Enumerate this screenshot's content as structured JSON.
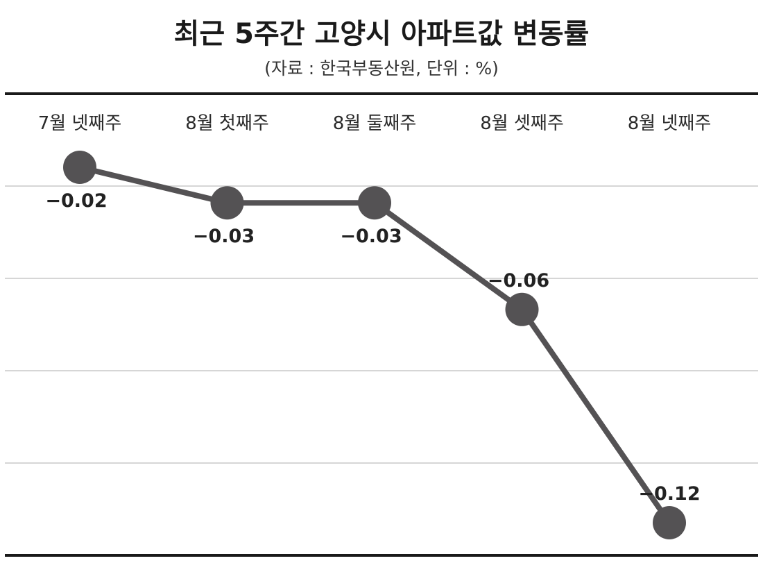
{
  "chart_data": {
    "type": "line",
    "title": "최근 5주간 고양시 아파트값 변동률",
    "subtitle": "(자료 : 한국부동산원, 단위 : %)",
    "xlabel": "",
    "ylabel": "",
    "categories": [
      "7월 넷째주",
      "8월 첫째주",
      "8월 둘째주",
      "8월 셋째주",
      "8월 넷째주"
    ],
    "series": [
      {
        "values": [
          -0.02,
          -0.03,
          -0.03,
          -0.06,
          -0.12
        ],
        "labels": [
          "−0.02",
          "−0.03",
          "−0.03",
          "−0.06",
          "−0.12"
        ]
      }
    ],
    "ylim": [
      -0.12,
      -0.02
    ],
    "grid": "horizontal",
    "legend": "none",
    "colors": {
      "line": "#545254",
      "marker": "#545254",
      "gridline": "#c8c8c8",
      "rule": "#1a1a1a"
    }
  }
}
